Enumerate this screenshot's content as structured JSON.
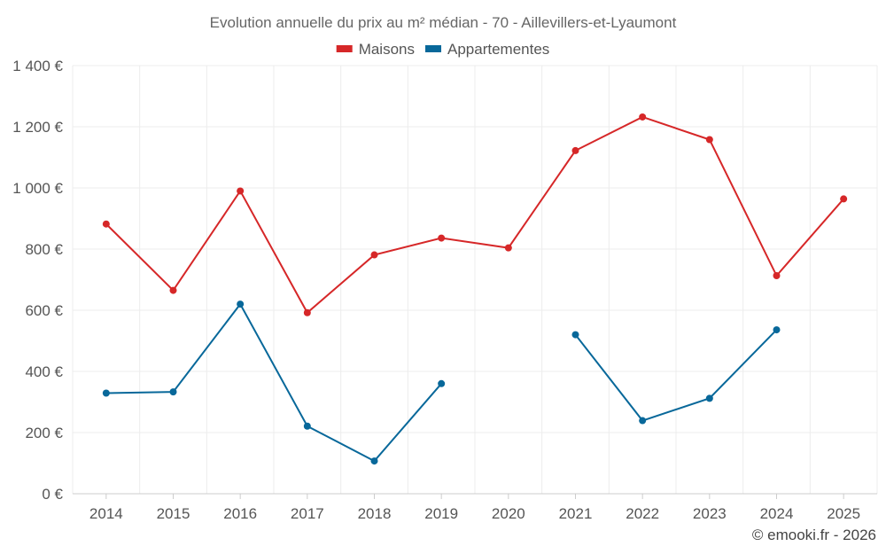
{
  "chart_data": {
    "type": "line",
    "title": "Evolution annuelle du prix au m² médian - 70 - Aillevillers-et-Lyaumont",
    "categories": [
      "2014",
      "2015",
      "2016",
      "2017",
      "2018",
      "2019",
      "2020",
      "2021",
      "2022",
      "2023",
      "2024",
      "2025"
    ],
    "ylim": [
      0,
      1400
    ],
    "yticks": [
      0,
      200,
      400,
      600,
      800,
      1000,
      1200,
      1400
    ],
    "ytick_labels": [
      "0 €",
      "200 €",
      "400 €",
      "600 €",
      "800 €",
      "1 000 €",
      "1 200 €",
      "1 400 €"
    ],
    "grid": true,
    "legend_position": "top-center",
    "series": [
      {
        "name": "Maisons",
        "color": "#d62728",
        "values": [
          882,
          665,
          990,
          592,
          781,
          836,
          804,
          1122,
          1232,
          1158,
          713,
          964
        ]
      },
      {
        "name": "Appartementes",
        "color": "#08689a",
        "values": [
          329,
          333,
          620,
          221,
          107,
          360,
          null,
          520,
          239,
          312,
          536,
          null
        ]
      }
    ],
    "credit": "© emooki.fr - 2026"
  }
}
